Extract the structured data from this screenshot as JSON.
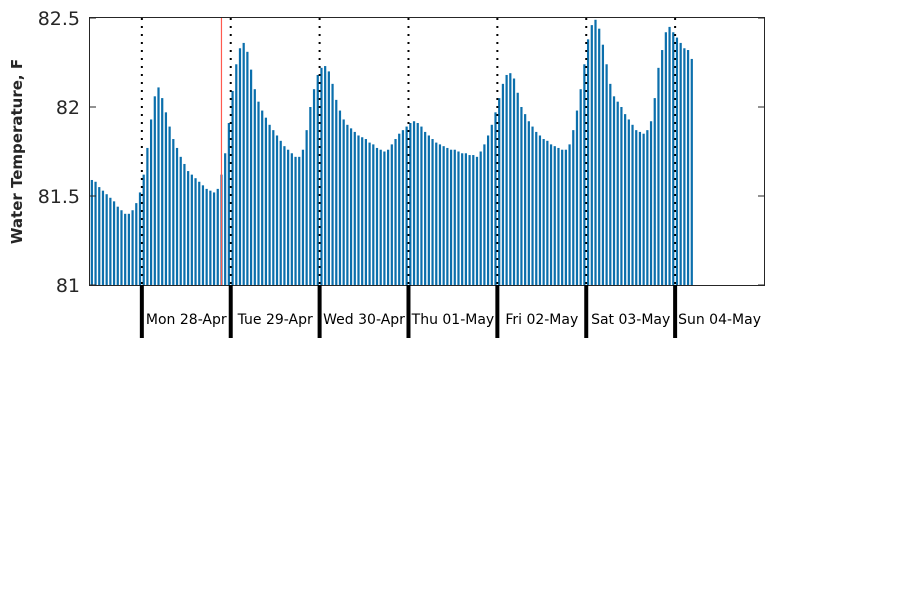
{
  "chart_data": {
    "type": "bar",
    "title": "",
    "xlabel": "",
    "ylabel": "Water Temperature, F",
    "ylim": [
      81,
      82.5
    ],
    "yticks": [
      "81",
      "81.5",
      "82",
      "82.5"
    ],
    "bar_color": "#0b6fac",
    "marker_color": "#ff5a4e",
    "start_hour": -14,
    "end_hour": 167,
    "current_hour": 21,
    "day_labels": [
      "Mon 28-Apr",
      "Tue 29-Apr",
      "Wed 30-Apr",
      "Thu 01-May",
      "Fri 02-May",
      "Sat 03-May",
      "Sun 04-May"
    ],
    "day_boundary_hours": [
      0,
      24,
      48,
      72,
      96,
      120,
      144
    ],
    "values": [
      81.59,
      81.58,
      81.55,
      81.53,
      81.51,
      81.49,
      81.47,
      81.44,
      81.42,
      81.4,
      81.4,
      81.42,
      81.46,
      81.52,
      81.62,
      81.77,
      81.93,
      82.06,
      82.11,
      82.05,
      81.97,
      81.89,
      81.82,
      81.77,
      81.72,
      81.68,
      81.64,
      81.62,
      81.6,
      81.58,
      81.56,
      81.54,
      81.53,
      81.52,
      81.54,
      81.62,
      81.74,
      81.91,
      82.09,
      82.24,
      82.33,
      82.36,
      82.31,
      82.21,
      82.1,
      82.03,
      81.98,
      81.94,
      81.9,
      81.87,
      81.84,
      81.81,
      81.78,
      81.76,
      81.74,
      81.72,
      81.72,
      81.76,
      81.87,
      82.0,
      82.1,
      82.18,
      82.22,
      82.23,
      82.2,
      82.13,
      82.04,
      81.98,
      81.93,
      81.9,
      81.88,
      81.86,
      81.84,
      81.83,
      81.82,
      81.8,
      81.79,
      81.77,
      81.76,
      81.75,
      81.76,
      81.79,
      81.82,
      81.85,
      81.87,
      81.89,
      81.91,
      81.92,
      81.91,
      81.89,
      81.86,
      81.84,
      81.82,
      81.8,
      81.79,
      81.78,
      81.77,
      81.76,
      81.76,
      81.75,
      81.74,
      81.74,
      81.73,
      81.73,
      81.72,
      81.75,
      81.79,
      81.84,
      81.9,
      81.97,
      82.05,
      82.13,
      82.18,
      82.19,
      82.16,
      82.08,
      82.0,
      81.96,
      81.92,
      81.89,
      81.86,
      81.84,
      81.82,
      81.81,
      81.79,
      81.78,
      81.77,
      81.76,
      81.76,
      81.79,
      81.87,
      81.98,
      82.1,
      82.24,
      82.38,
      82.46,
      82.49,
      82.44,
      82.35,
      82.24,
      82.13,
      82.06,
      82.03,
      82.0,
      81.96,
      81.93,
      81.9,
      81.87,
      81.86,
      81.85,
      81.87,
      81.92,
      82.05,
      82.22,
      82.32,
      82.42,
      82.45,
      82.42,
      82.39,
      82.36,
      82.33,
      82.32,
      82.27
    ]
  }
}
